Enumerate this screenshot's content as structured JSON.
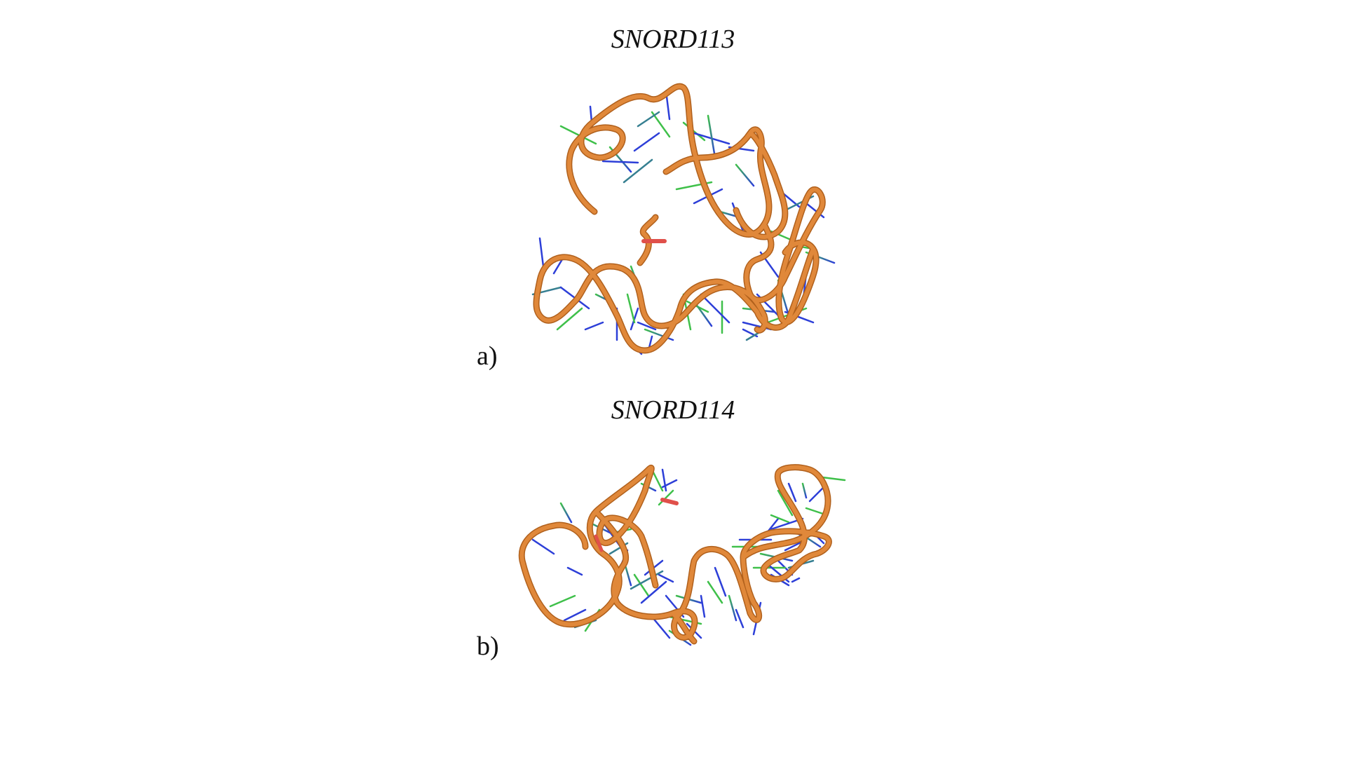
{
  "figure": {
    "panel_a": {
      "title": "SNORD113",
      "label": "a)"
    },
    "panel_b": {
      "title": "SNORD114",
      "label": "b)"
    }
  },
  "colors": {
    "backbone": "#e0883a",
    "backbone_edge": "#b0601c",
    "base_green": "#3fc04a",
    "base_blue": "#2d3fd8",
    "terminal_red": "#e0504a"
  }
}
